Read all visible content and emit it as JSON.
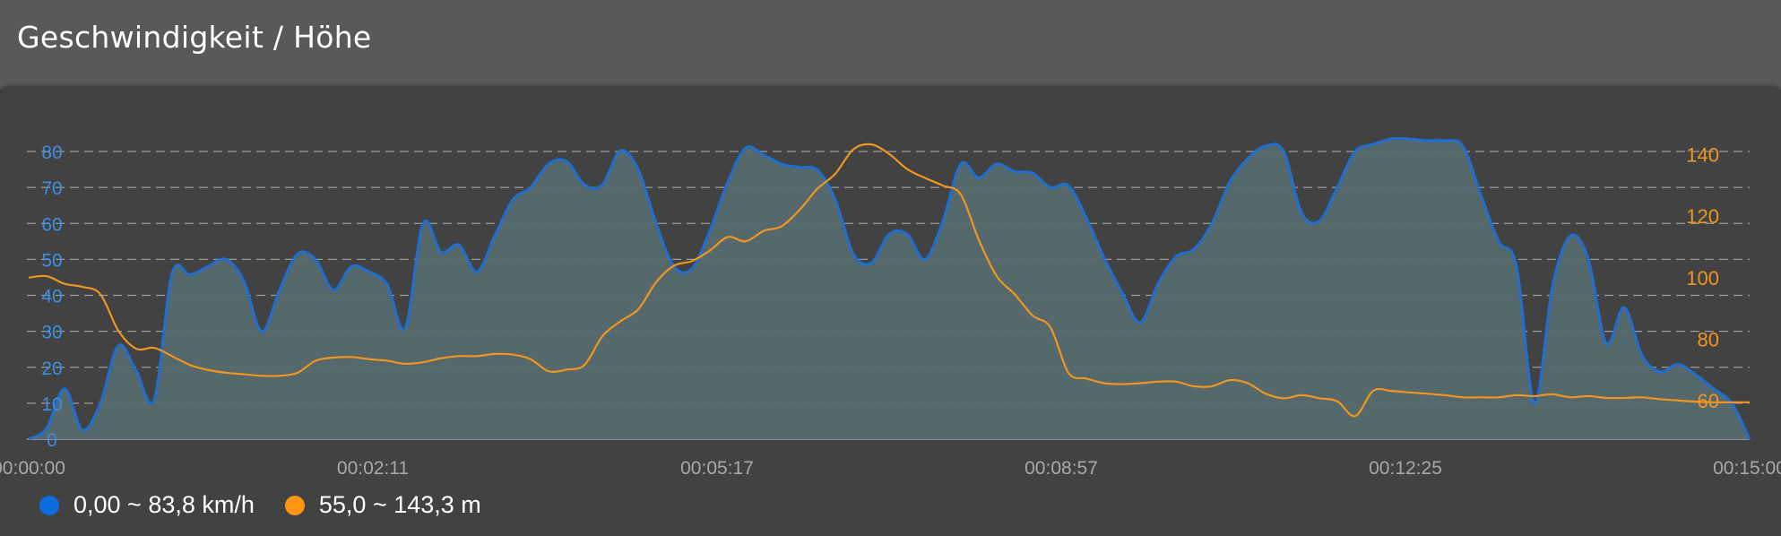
{
  "header": {
    "title": "Geschwindigkeit / Höhe"
  },
  "legend": [
    {
      "label": "0,00 ~ 83,8 km/h",
      "color": "#0a6ee0"
    },
    {
      "label": "55,0 ~ 143,3 m",
      "color": "#ff9312"
    }
  ],
  "chart_data": {
    "type": "area",
    "title": "Geschwindigkeit / Höhe",
    "grid": true,
    "legend_position": "bottom-left",
    "x_tick_labels": [
      "00:00:00",
      "00:02:11",
      "00:05:17",
      "00:08:57",
      "00:12:25",
      "00:15:00"
    ],
    "y_left": {
      "ticks": [
        0,
        10,
        20,
        30,
        40,
        50,
        60,
        70,
        80
      ],
      "range": [
        0,
        80
      ],
      "color": "#3a8ee6"
    },
    "y_right": {
      "ticks": [
        60,
        80,
        100,
        120,
        140
      ],
      "range": [
        47.5,
        141
      ],
      "color": "#f0961e"
    },
    "series": [
      {
        "name": "km/h",
        "axis": "left",
        "type": "area",
        "color": "#1f6fd1",
        "fill": "#566a6e",
        "values": [
          0,
          3,
          14,
          2.5,
          10,
          26,
          19,
          11,
          46,
          45.7,
          48,
          50,
          44,
          30,
          41.5,
          51.5,
          50,
          41.5,
          48,
          46.5,
          43,
          30.8,
          60,
          52,
          54,
          46.5,
          56.5,
          66.5,
          70,
          76.5,
          77.3,
          70.7,
          70.7,
          80.2,
          75,
          60,
          48,
          47.4,
          58,
          71.5,
          81,
          79,
          76.5,
          75.6,
          74.8,
          66.5,
          51.5,
          49,
          57,
          57,
          50,
          60.7,
          76.5,
          72.7,
          76.5,
          74.4,
          74,
          70,
          70.5,
          61.5,
          50.3,
          40.7,
          32.4,
          43.2,
          50.7,
          52.8,
          59.9,
          71.5,
          78,
          81.5,
          80,
          63,
          60.7,
          70,
          80,
          82,
          83.5,
          83.5,
          83,
          83,
          81.5,
          68,
          55,
          48,
          10,
          42.4,
          56.5,
          50,
          26.6,
          36.6,
          23.3,
          18.7,
          20.8,
          17.9,
          14,
          10,
          0
        ]
      },
      {
        "name": "m",
        "axis": "right",
        "type": "line",
        "color": "#f0961e",
        "values": [
          100,
          100.5,
          98,
          97,
          94.6,
          82.8,
          76.9,
          77.2,
          74.5,
          71.6,
          70,
          69.1,
          68.6,
          68.1,
          68.1,
          69.1,
          73,
          74,
          74.2,
          73.5,
          73,
          72,
          72.5,
          73.8,
          74.5,
          74.5,
          75.2,
          75,
          73.5,
          69.6,
          70.1,
          71.6,
          80.9,
          85.8,
          89.7,
          98.5,
          103.9,
          105.4,
          108.8,
          113.2,
          111.8,
          115.2,
          116.7,
          122,
          128.9,
          133.8,
          141.7,
          143.3,
          140.2,
          135.3,
          132.4,
          129.9,
          127,
          112.3,
          100.5,
          94.6,
          87.7,
          83.8,
          69.1,
          67.2,
          65.7,
          65.4,
          65.7,
          66.2,
          66.2,
          64.7,
          64.7,
          66.7,
          65.7,
          62.3,
          60.8,
          61.8,
          60.8,
          59.8,
          55,
          63.2,
          63.2,
          62.7,
          62.3,
          61.8,
          61.1,
          61.1,
          61.1,
          61.8,
          61.5,
          62.1,
          61.1,
          61.5,
          60.9,
          60.9,
          61.1,
          60.5,
          60.1,
          59.7,
          59.5,
          59.5,
          59.5
        ]
      }
    ]
  }
}
